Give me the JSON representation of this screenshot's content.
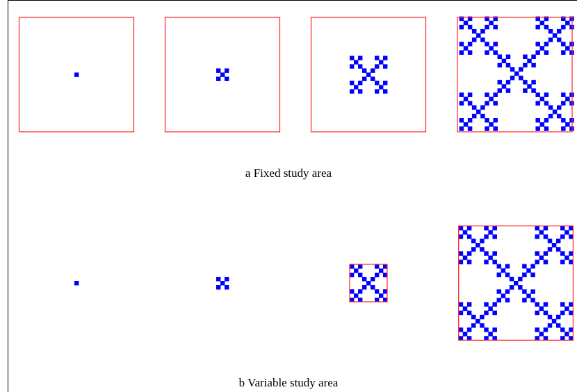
{
  "captions": {
    "a": "a Fixed study area",
    "b": "b Variable study area"
  },
  "colors": {
    "boundary": "#ff2222",
    "pattern": "#0000ff",
    "frame": "#000000"
  },
  "figure": {
    "fractal_levels": [
      0,
      1,
      2,
      3
    ],
    "rows": [
      "fixed",
      "variable"
    ]
  }
}
